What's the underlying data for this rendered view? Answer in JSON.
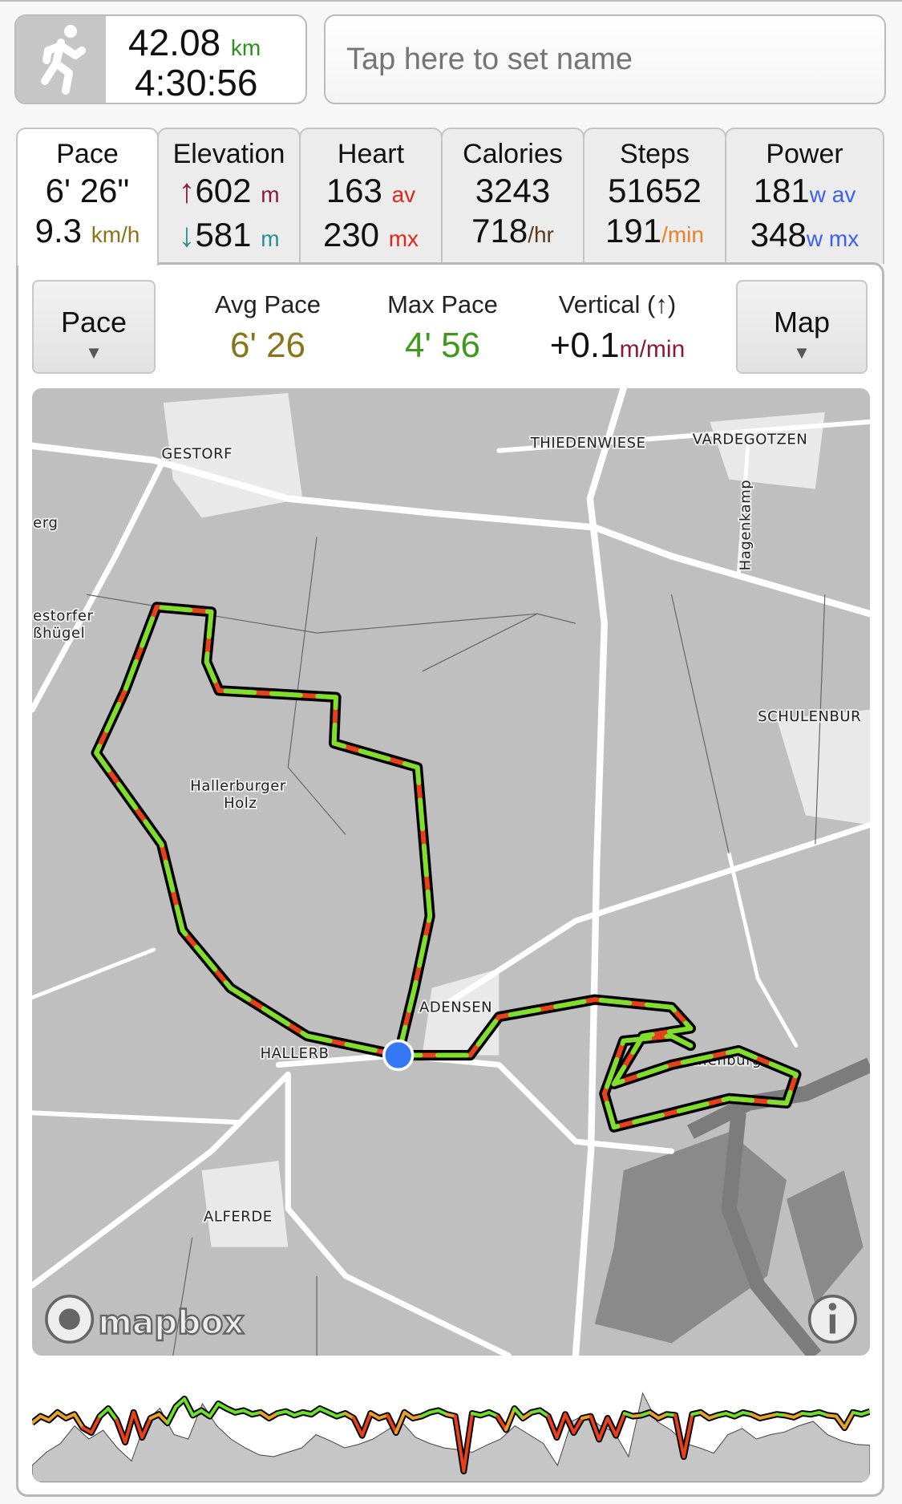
{
  "summary": {
    "distance": "42.08",
    "distance_unit": "km",
    "duration": "4:30:56",
    "sport_icon": "running-person-icon"
  },
  "name_field": {
    "placeholder": "Tap here to set name",
    "value": ""
  },
  "tabs": [
    {
      "label": "Pace",
      "line1": "6' 26\"",
      "line1_unit": "",
      "line2": "9.3",
      "line2_unit": "km/h",
      "active": true
    },
    {
      "label": "Elevation",
      "line1": "602",
      "line1_prefix": "↑",
      "line1_unit": "m",
      "line2": "581",
      "line2_prefix": "↓",
      "line2_unit": "m"
    },
    {
      "label": "Heart",
      "line1": "163",
      "line1_unit": "av",
      "line2": "230",
      "line2_unit": "mx"
    },
    {
      "label": "Calories",
      "line1": "3243",
      "line1_unit": "",
      "line2": "718",
      "line2_unit": "/hr"
    },
    {
      "label": "Steps",
      "line1": "51652",
      "line1_unit": "",
      "line2": "191",
      "line2_unit": "/min"
    },
    {
      "label": "Power",
      "line1": "181",
      "line1_unit": "w av",
      "line2": "348",
      "line2_unit": "w mx"
    }
  ],
  "controls": {
    "left_button": "Pace",
    "right_button": "Map",
    "chevron": "▼",
    "avg_pace": {
      "label": "Avg Pace",
      "value": "6' 26"
    },
    "max_pace": {
      "label": "Max Pace",
      "value": "4' 56"
    },
    "vertical": {
      "label": "Vertical (↑)",
      "value": "+0.1",
      "unit": "m/min"
    }
  },
  "map": {
    "labels": [
      "GESTORF",
      "THIEDENWIESE",
      "VARDEGOTZEN",
      "Hagenkamp",
      "SCHULENBUR",
      "Hallerburger",
      "Holz",
      "ADENSEN",
      "HALLERB",
      "ALFERDE",
      "erg",
      "estorfer",
      "ßhügel",
      "...enburg"
    ],
    "attribution": "mapbox",
    "info_icon": "info-icon",
    "current_position_color": "#3478f6"
  },
  "colors": {
    "green": "#2f8f1f",
    "olive": "#8a7419",
    "maroon": "#8b1a3a",
    "teal": "#2a8f8f",
    "red": "#e0261b",
    "brown": "#5a3a1a",
    "orange": "#e8822a",
    "blue": "#3a5ef0",
    "fast": "#6be02a",
    "slow": "#e8401b"
  },
  "profile": {
    "pace": [
      55,
      62,
      58,
      66,
      60,
      64,
      50,
      45,
      62,
      70,
      58,
      35,
      66,
      40,
      60,
      64,
      55,
      72,
      80,
      63,
      68,
      62,
      75,
      70,
      66,
      68,
      64,
      66,
      60,
      65,
      67,
      63,
      66,
      64,
      70,
      66,
      62,
      65,
      60,
      42,
      65,
      60,
      63,
      45,
      66,
      60,
      62,
      66,
      68,
      64,
      62,
      5,
      65,
      63,
      66,
      62,
      48,
      70,
      60,
      66,
      68,
      62,
      40,
      64,
      45,
      60,
      62,
      38,
      60,
      42,
      65,
      62,
      63,
      66,
      60,
      64,
      63,
      20,
      64,
      66,
      60,
      63,
      65,
      62,
      66,
      64,
      60,
      62,
      64,
      63,
      61,
      65,
      64,
      66,
      63,
      62,
      50,
      66,
      64,
      67
    ],
    "elevation": [
      10,
      25,
      35,
      55,
      40,
      50,
      30,
      15,
      60,
      75,
      45,
      40,
      80,
      55,
      40,
      30,
      22,
      20,
      25,
      30,
      45,
      38,
      30,
      34,
      40,
      50,
      60,
      42,
      35,
      30,
      28,
      25,
      33,
      40,
      55,
      45,
      35,
      10,
      60,
      68,
      55,
      48,
      20,
      92,
      60,
      50,
      35,
      30,
      24,
      45,
      52,
      40,
      45,
      48,
      55,
      60,
      45,
      38,
      34,
      33
    ]
  }
}
